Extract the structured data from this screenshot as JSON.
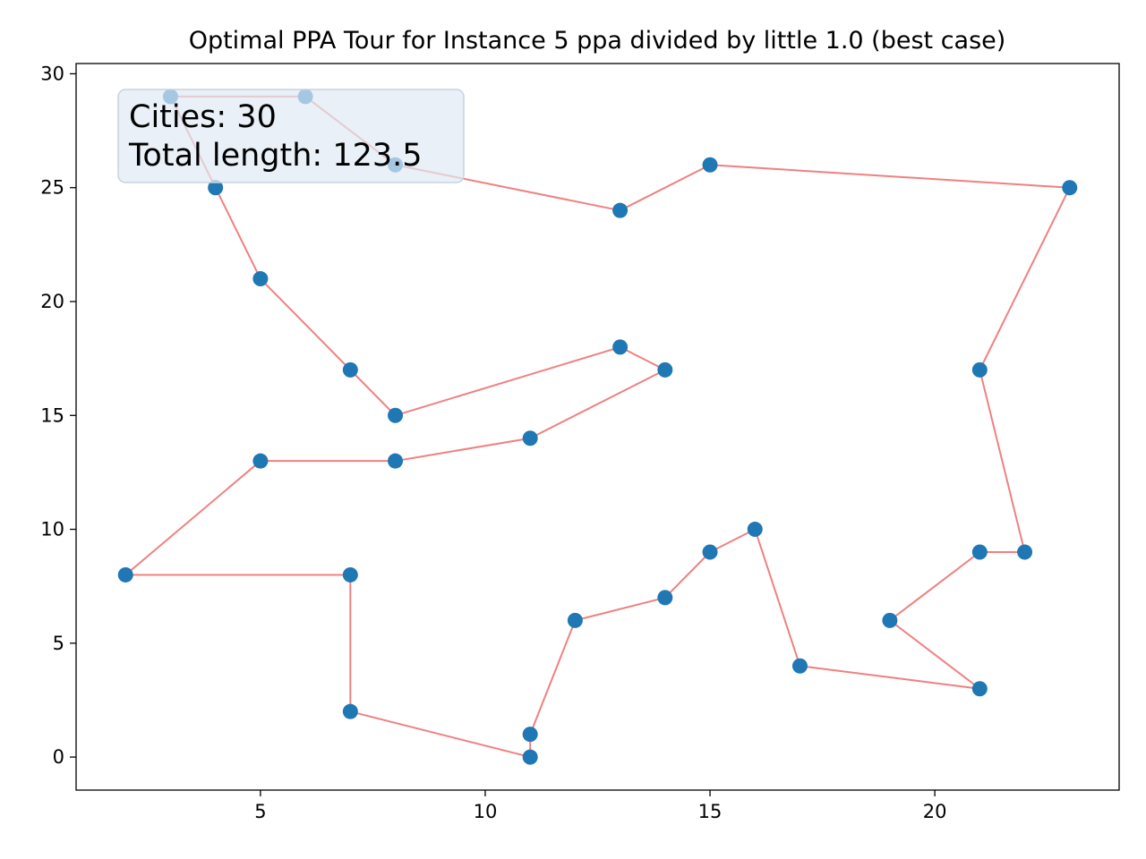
{
  "chart_data": {
    "type": "line",
    "title": "Optimal PPA Tour for Instance 5 ppa divided by little 1.0 (best case)",
    "xlabel": "",
    "ylabel": "",
    "xlim": [
      0.9,
      24.1
    ],
    "ylim": [
      -1.45,
      30.45
    ],
    "xticks": [
      5,
      10,
      15,
      20
    ],
    "yticks": [
      0,
      5,
      10,
      15,
      20,
      25,
      30
    ],
    "grid": false,
    "tour": [
      [
        3,
        29
      ],
      [
        6,
        29
      ],
      [
        8,
        26
      ],
      [
        13,
        24
      ],
      [
        15,
        26
      ],
      [
        23,
        25
      ],
      [
        21,
        17
      ],
      [
        22,
        9
      ],
      [
        21,
        9
      ],
      [
        19,
        6
      ],
      [
        21,
        3
      ],
      [
        17,
        4
      ],
      [
        16,
        10
      ],
      [
        15,
        9
      ],
      [
        14,
        7
      ],
      [
        12,
        6
      ],
      [
        11,
        1
      ],
      [
        11,
        0
      ],
      [
        7,
        2
      ],
      [
        7,
        8
      ],
      [
        2,
        8
      ],
      [
        5,
        13
      ],
      [
        8,
        13
      ],
      [
        11,
        14
      ],
      [
        14,
        17
      ],
      [
        13,
        18
      ],
      [
        8,
        15
      ],
      [
        7,
        17
      ],
      [
        5,
        21
      ],
      [
        4,
        25
      ],
      [
        3,
        29
      ]
    ],
    "point_color": "#1f77b4",
    "line_color": "#f08080",
    "annotation": {
      "lines": [
        "Cities: 30",
        "Total length: 123.5"
      ],
      "position": "top-left"
    }
  }
}
